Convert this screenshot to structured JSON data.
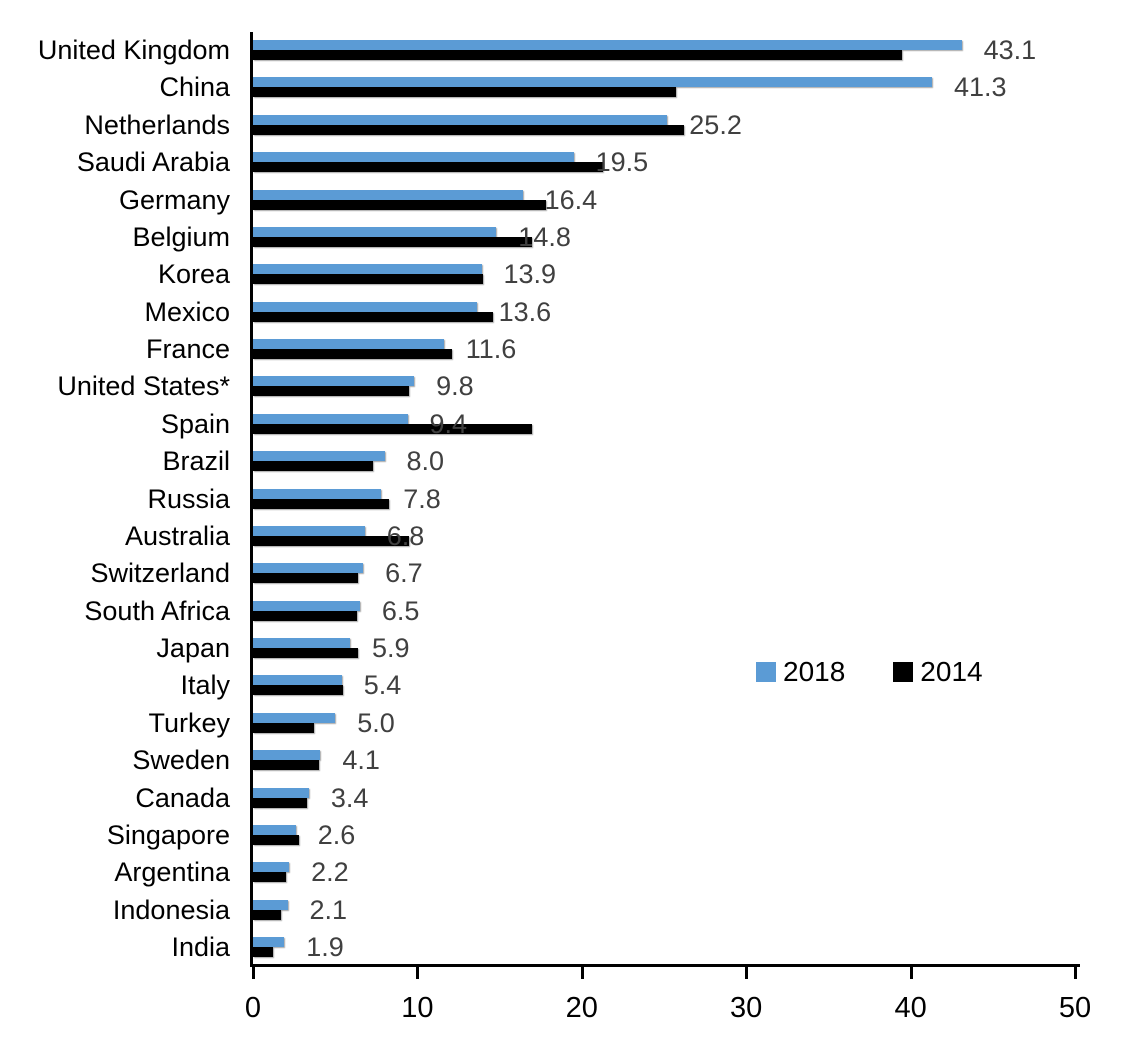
{
  "chart_data": {
    "type": "bar",
    "orientation": "horizontal",
    "title": "",
    "xlabel": "",
    "ylabel": "",
    "xlim": [
      0,
      50
    ],
    "x_ticks": [
      0,
      10,
      20,
      30,
      40,
      50
    ],
    "grid": false,
    "categories": [
      "United Kingdom",
      "China",
      "Netherlands",
      "Saudi Arabia",
      "Germany",
      "Belgium",
      "Korea",
      "Mexico",
      "France",
      "United States*",
      "Spain",
      "Brazil",
      "Russia",
      "Australia",
      "Switzerland",
      "South Africa",
      "Japan",
      "Italy",
      "Turkey",
      "Sweden",
      "Canada",
      "Singapore",
      "Argentina",
      "Indonesia",
      "India"
    ],
    "series": [
      {
        "name": "2018",
        "color": "#5B9BD5",
        "values": [
          43.1,
          41.3,
          25.2,
          19.5,
          16.4,
          14.8,
          13.9,
          13.6,
          11.6,
          9.8,
          9.4,
          8.0,
          7.8,
          6.8,
          6.7,
          6.5,
          5.9,
          5.4,
          5.0,
          4.1,
          3.4,
          2.6,
          2.2,
          2.1,
          1.9
        ]
      },
      {
        "name": "2014",
        "color": "#000000",
        "values": [
          39.5,
          25.7,
          26.2,
          21.3,
          17.8,
          17.0,
          14.0,
          14.6,
          12.1,
          9.5,
          17.0,
          7.3,
          8.3,
          9.5,
          6.4,
          6.3,
          6.4,
          5.5,
          3.7,
          4.0,
          3.3,
          2.8,
          2.0,
          1.7,
          1.2
        ]
      }
    ],
    "data_labels": {
      "labeled_series": "2018",
      "values": [
        "43.1",
        "41.3",
        "25.2",
        "19.5",
        "16.4",
        "14.8",
        "13.9",
        "13.6",
        "11.6",
        "9.8",
        "9.4",
        "8.0",
        "7.8",
        "6.8",
        "6.7",
        "6.5",
        "5.9",
        "5.4",
        "5.0",
        "4.1",
        "3.4",
        "2.6",
        "2.2",
        "2.1",
        "1.9"
      ]
    },
    "tick_labels": [
      "0",
      "10",
      "20",
      "30",
      "40",
      "50"
    ],
    "legend": {
      "position": "middle-right",
      "entries": [
        {
          "label": "2018",
          "color": "#5B9BD5"
        },
        {
          "label": "2014",
          "color": "#000000"
        }
      ]
    }
  },
  "colors": {
    "background": "#FFFFFF",
    "axis": "#000000",
    "category_text": "#000000",
    "value_label_text": "#404040",
    "tick_text": "#000000"
  }
}
